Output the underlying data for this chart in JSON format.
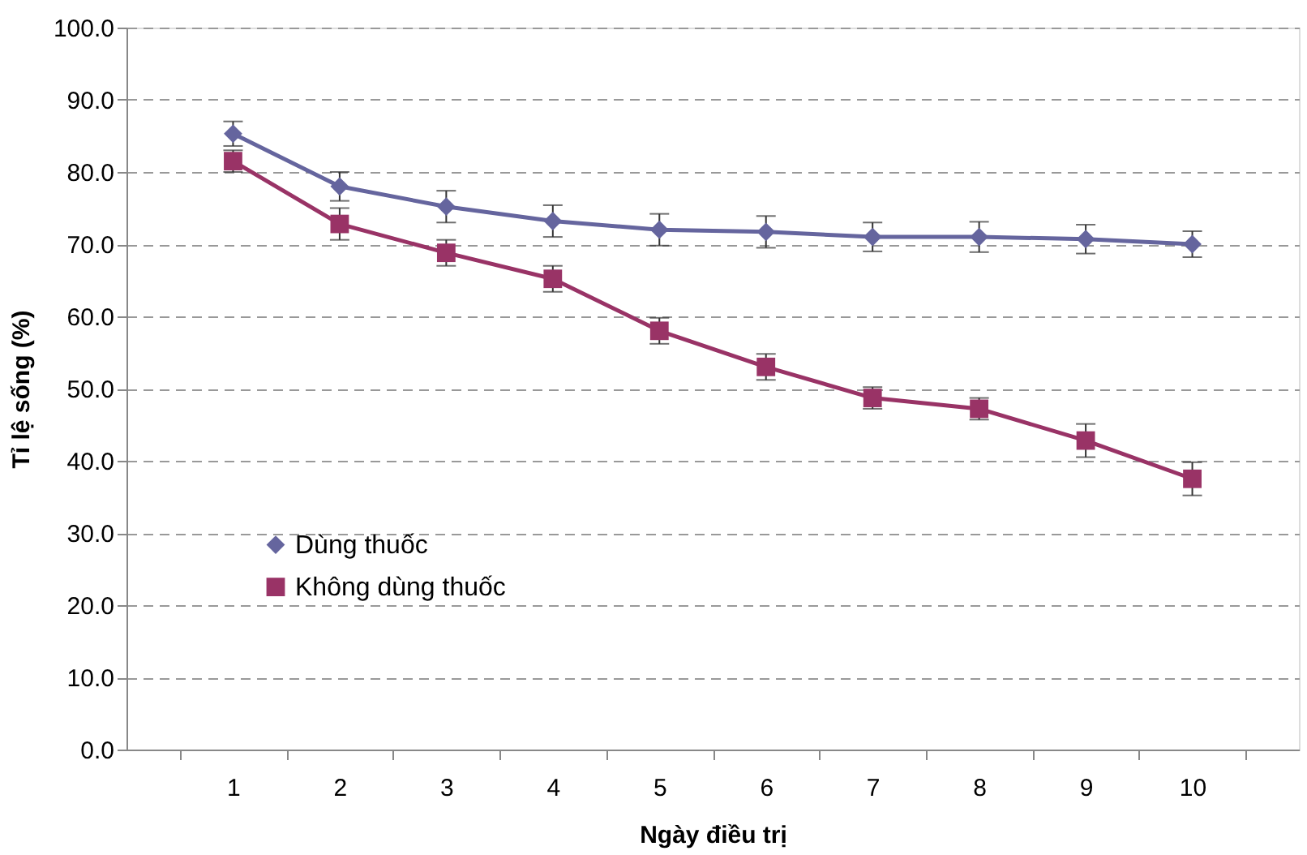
{
  "chart_data": {
    "type": "line",
    "xlabel": "Ngày điều trị",
    "ylabel": "Tỉ lệ sống (%)",
    "categories": [
      "1",
      "2",
      "3",
      "4",
      "5",
      "6",
      "7",
      "8",
      "9",
      "10"
    ],
    "series": [
      {
        "name": "Dùng thuốc",
        "color": "#65659e",
        "marker": "diamond",
        "values": [
          85.3,
          78.0,
          75.2,
          73.2,
          72.0,
          71.7,
          71.0,
          71.0,
          70.7,
          70.0
        ],
        "errors": [
          1.7,
          2.0,
          2.2,
          2.2,
          2.2,
          2.2,
          2.0,
          2.1,
          2.0,
          1.8
        ]
      },
      {
        "name": "Không dùng thuốc",
        "color": "#993366",
        "marker": "square",
        "values": [
          81.5,
          72.8,
          68.8,
          65.2,
          58.0,
          53.0,
          48.7,
          47.2,
          42.8,
          37.5
        ],
        "errors": [
          1.5,
          2.2,
          1.8,
          1.8,
          1.8,
          1.8,
          1.5,
          1.5,
          2.3,
          2.3
        ]
      }
    ],
    "ylim": [
      0,
      100
    ],
    "yticks": [
      {
        "value": 0,
        "label": "0.0"
      },
      {
        "value": 10,
        "label": "10.0"
      },
      {
        "value": 20,
        "label": "20.0"
      },
      {
        "value": 30,
        "label": "30.0"
      },
      {
        "value": 40,
        "label": "40.0"
      },
      {
        "value": 50,
        "label": "50.0"
      },
      {
        "value": 60,
        "label": "60.0"
      },
      {
        "value": 70,
        "label": "70.0"
      },
      {
        "value": 80,
        "label": "80.0"
      },
      {
        "value": 90,
        "label": "90.0"
      },
      {
        "value": 100,
        "label": "100.0"
      }
    ],
    "grid": "y",
    "legend": "left",
    "line_style": "solid"
  }
}
